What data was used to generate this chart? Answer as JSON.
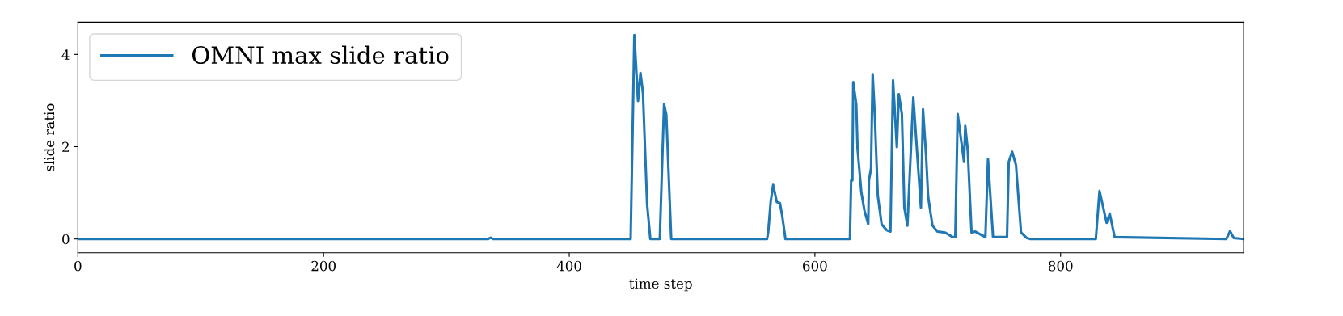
{
  "chart_data": {
    "type": "line",
    "xlabel": "time step",
    "ylabel": "slide ratio",
    "xlim": [
      0,
      949
    ],
    "ylim": [
      -0.3,
      4.7
    ],
    "xticks": [
      0,
      200,
      400,
      600,
      800
    ],
    "yticks": [
      0,
      2,
      4
    ],
    "grid": false,
    "legend": "top left",
    "line_style": "solid",
    "marker": "none",
    "series": [
      {
        "name": "OMNI max slide ratio",
        "color": "#1f77b4",
        "x": [
          0,
          334,
          336,
          338,
          450,
          453,
          456,
          458,
          460,
          463.4,
          466,
          473.7,
          477.2,
          479,
          483,
          561,
          562,
          564,
          566,
          569,
          571.5,
          573.5,
          576,
          628.5,
          629.5,
          630.5,
          631.2,
          633.7,
          634.7,
          637.8,
          640.3,
          643.4,
          644,
          645.7,
          647,
          648.7,
          651.2,
          654.3,
          658.4,
          661.5,
          663.6,
          666.7,
          668.3,
          670.8,
          672.8,
          675.3,
          680.1,
          686.3,
          688,
          690.5,
          692.2,
          695.7,
          699.8,
          706,
          712.2,
          714.3,
          716.2,
          721.4,
          722.4,
          724.4,
          727.5,
          730.6,
          738.8,
          740.9,
          745,
          756.4,
          757.8,
          760.6,
          763.7,
          767.8,
          772,
          775,
          828.7,
          831.7,
          837.5,
          840,
          844,
          935,
          938,
          941,
          948
        ],
        "values": [
          0,
          0,
          0.03,
          0,
          0,
          4.42,
          2.99,
          3.6,
          3.17,
          0.75,
          0,
          0,
          2.92,
          2.7,
          0,
          0,
          0.15,
          0.81,
          1.17,
          0.8,
          0.78,
          0.48,
          0,
          0,
          1.27,
          1.27,
          3.4,
          2.91,
          1.96,
          1.01,
          0.62,
          0.32,
          1.27,
          1.53,
          3.57,
          2.71,
          0.94,
          0.32,
          0.19,
          0.16,
          3.44,
          1.99,
          3.14,
          2.71,
          0.68,
          0.29,
          3.07,
          0.68,
          2.81,
          1.8,
          0.91,
          0.29,
          0.16,
          0.14,
          0.04,
          0.04,
          2.71,
          1.67,
          2.45,
          1.93,
          0.14,
          0.16,
          0.04,
          1.73,
          0.04,
          0.04,
          1.67,
          1.89,
          1.6,
          0.14,
          0.03,
          0,
          0,
          1.04,
          0.35,
          0.55,
          0.04,
          0,
          0.17,
          0.02,
          0
        ]
      }
    ]
  }
}
